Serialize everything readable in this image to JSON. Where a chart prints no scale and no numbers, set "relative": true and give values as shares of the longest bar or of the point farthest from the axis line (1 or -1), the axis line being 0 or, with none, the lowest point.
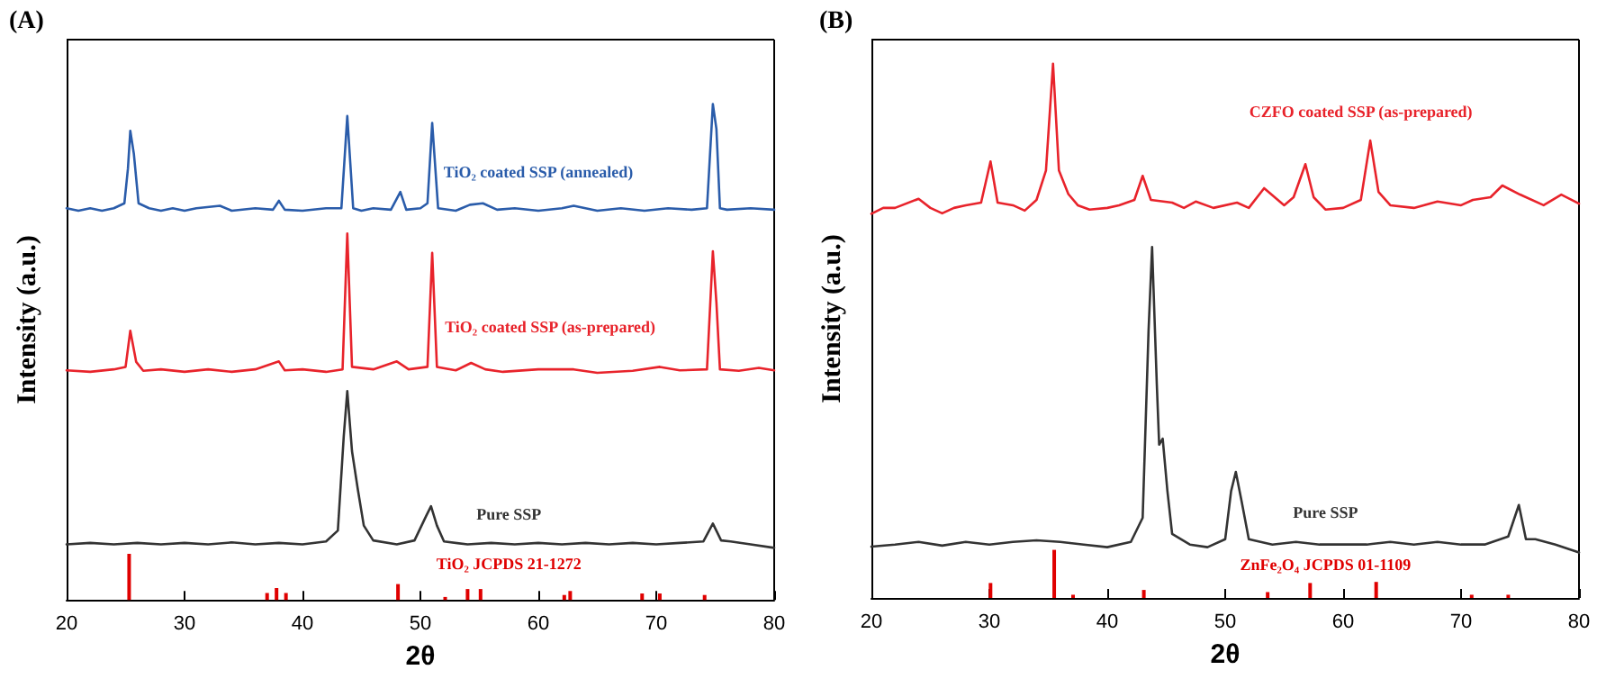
{
  "chart_data": [
    {
      "type": "line",
      "title": "(A)",
      "xlabel": "2θ",
      "ylabel": "Intensity (a.u.)",
      "relative": true,
      "xlim": [
        20,
        80
      ],
      "xticks": [
        20,
        30,
        40,
        50,
        60,
        70,
        80
      ],
      "series": [
        {
          "name": "TiO₂ coated SSP (annealed)",
          "color": "#2a5caa",
          "x": [
            20,
            21,
            22,
            23,
            24,
            24.9,
            25.2,
            25.4,
            25.7,
            26.1,
            27,
            28,
            29,
            30,
            31,
            33,
            34,
            36,
            37.5,
            38,
            38.5,
            40,
            42,
            43.3,
            43.8,
            44.3,
            45,
            46,
            47.5,
            48.3,
            48.8,
            50,
            50.6,
            51,
            51.5,
            53,
            54.2,
            55.3,
            56.5,
            58,
            60,
            62,
            63,
            65,
            67,
            69,
            71,
            73,
            74.3,
            74.8,
            75.1,
            75.4,
            76,
            78,
            80
          ],
          "values": [
            0.79,
            0.785,
            0.79,
            0.785,
            0.79,
            0.8,
            0.87,
            0.946,
            0.9,
            0.8,
            0.79,
            0.785,
            0.79,
            0.785,
            0.79,
            0.795,
            0.785,
            0.79,
            0.787,
            0.805,
            0.787,
            0.785,
            0.79,
            0.79,
            0.976,
            0.79,
            0.785,
            0.79,
            0.787,
            0.823,
            0.787,
            0.79,
            0.8,
            0.962,
            0.79,
            0.785,
            0.797,
            0.8,
            0.787,
            0.79,
            0.785,
            0.79,
            0.795,
            0.785,
            0.79,
            0.785,
            0.79,
            0.787,
            0.79,
            1.0,
            0.95,
            0.79,
            0.787,
            0.79,
            0.787
          ]
        },
        {
          "name": "TiO₂ coated SSP (as-prepared)",
          "color": "#e8232b",
          "x": [
            20,
            22,
            24,
            25,
            25.4,
            25.9,
            26.5,
            28,
            30,
            32,
            34,
            36,
            38,
            38.5,
            40,
            42,
            43.4,
            43.8,
            44.2,
            46,
            48,
            49,
            50.6,
            51,
            51.4,
            53,
            54.3,
            55.5,
            57,
            60,
            63,
            65,
            68,
            70.3,
            72,
            74.3,
            74.8,
            75.1,
            75.4,
            77,
            78.7,
            80
          ],
          "values": [
            0.463,
            0.46,
            0.465,
            0.47,
            0.543,
            0.48,
            0.462,
            0.465,
            0.46,
            0.465,
            0.46,
            0.465,
            0.481,
            0.463,
            0.465,
            0.46,
            0.465,
            0.739,
            0.47,
            0.465,
            0.481,
            0.465,
            0.47,
            0.7,
            0.47,
            0.463,
            0.478,
            0.465,
            0.46,
            0.465,
            0.465,
            0.458,
            0.462,
            0.47,
            0.463,
            0.465,
            0.703,
            0.6,
            0.465,
            0.462,
            0.468,
            0.463
          ]
        },
        {
          "name": "Pure SSP",
          "color": "#333333",
          "x": [
            20,
            22,
            24,
            26,
            28,
            30,
            32,
            34,
            36,
            38,
            40,
            42,
            43,
            43.5,
            43.8,
            44.2,
            44.7,
            45.2,
            46,
            48,
            49.5,
            50.5,
            50.9,
            51.4,
            52,
            54,
            56,
            58,
            60,
            62,
            64,
            66,
            68,
            70,
            72,
            74,
            74.8,
            75.5,
            76.3,
            78,
            80
          ],
          "values": [
            0.112,
            0.115,
            0.112,
            0.115,
            0.112,
            0.115,
            0.112,
            0.116,
            0.112,
            0.115,
            0.112,
            0.118,
            0.14,
            0.33,
            0.421,
            0.3,
            0.222,
            0.15,
            0.12,
            0.112,
            0.12,
            0.17,
            0.189,
            0.15,
            0.118,
            0.112,
            0.115,
            0.112,
            0.115,
            0.112,
            0.115,
            0.112,
            0.115,
            0.112,
            0.115,
            0.118,
            0.154,
            0.12,
            0.118,
            0.112,
            0.105
          ]
        },
        {
          "name": "TiO₂ JCPDS 21-1272",
          "type": "bar",
          "color": "#e00000",
          "x": [
            25.3,
            37,
            37.8,
            38.6,
            48.1,
            52.1,
            54,
            55.1,
            62.2,
            62.7,
            68.8,
            70.3,
            74.1
          ],
          "values": [
            0.093,
            0.014,
            0.024,
            0.014,
            0.032,
            0.006,
            0.022,
            0.022,
            0.01,
            0.018,
            0.013,
            0.013,
            0.01
          ]
        }
      ]
    },
    {
      "type": "line",
      "title": "(B)",
      "xlabel": "2θ",
      "ylabel": "Intensity (a.u.)",
      "relative": true,
      "xlim": [
        20,
        80
      ],
      "xticks": [
        20,
        30,
        40,
        50,
        60,
        70,
        80
      ],
      "series": [
        {
          "name": "CZFO coated SSP (as-prepared)",
          "color": "#e8232b",
          "x": [
            20,
            21,
            22,
            24,
            25,
            26,
            27,
            28,
            29.3,
            30.1,
            30.7,
            32,
            33,
            34,
            34.8,
            35.4,
            35.9,
            36.7,
            37.5,
            38.5,
            40,
            41,
            42.3,
            43,
            43.7,
            45.5,
            46.5,
            47.5,
            49,
            51,
            52,
            53.3,
            55,
            55.8,
            56.8,
            57.5,
            58.5,
            60,
            61.5,
            62.3,
            63,
            64,
            66,
            68,
            70,
            71,
            72.5,
            73.5,
            75,
            77,
            78.5,
            80
          ],
          "values": [
            0.719,
            0.73,
            0.73,
            0.747,
            0.73,
            0.72,
            0.73,
            0.735,
            0.74,
            0.817,
            0.74,
            0.735,
            0.725,
            0.745,
            0.8,
            1.0,
            0.8,
            0.756,
            0.735,
            0.727,
            0.73,
            0.735,
            0.745,
            0.79,
            0.745,
            0.74,
            0.73,
            0.742,
            0.73,
            0.74,
            0.73,
            0.767,
            0.735,
            0.75,
            0.812,
            0.75,
            0.727,
            0.73,
            0.745,
            0.856,
            0.76,
            0.735,
            0.73,
            0.742,
            0.735,
            0.745,
            0.75,
            0.772,
            0.755,
            0.735,
            0.755,
            0.738
          ]
        },
        {
          "name": "Pure SSP",
          "color": "#333333",
          "x": [
            20,
            22,
            24,
            26,
            28,
            30,
            32,
            34,
            36,
            38,
            40,
            42,
            43,
            43.5,
            43.8,
            44.2,
            44.4,
            44.7,
            45.1,
            45.5,
            47,
            48.5,
            50,
            50.5,
            50.9,
            51.4,
            52,
            54,
            56,
            58,
            60,
            62,
            64,
            66,
            68,
            70,
            72,
            74,
            74.9,
            75.5,
            76.3,
            78,
            80
          ],
          "values": [
            0.096,
            0.1,
            0.105,
            0.098,
            0.105,
            0.1,
            0.105,
            0.108,
            0.105,
            0.1,
            0.095,
            0.105,
            0.15,
            0.5,
            0.657,
            0.4,
            0.287,
            0.298,
            0.2,
            0.12,
            0.1,
            0.095,
            0.11,
            0.2,
            0.236,
            0.18,
            0.11,
            0.1,
            0.105,
            0.1,
            0.1,
            0.1,
            0.105,
            0.1,
            0.105,
            0.1,
            0.1,
            0.115,
            0.174,
            0.11,
            0.11,
            0.1,
            0.085
          ]
        },
        {
          "name": "ZnFe₂O₄ JCPDS 01-1109",
          "type": "bar",
          "color": "#e00000",
          "x": [
            30.1,
            35.5,
            37.1,
            43.1,
            53.6,
            57.2,
            62.8,
            70.9,
            74
          ],
          "values": [
            0.028,
            0.09,
            0.006,
            0.015,
            0.011,
            0.028,
            0.03,
            0.006,
            0.006
          ]
        }
      ]
    }
  ]
}
